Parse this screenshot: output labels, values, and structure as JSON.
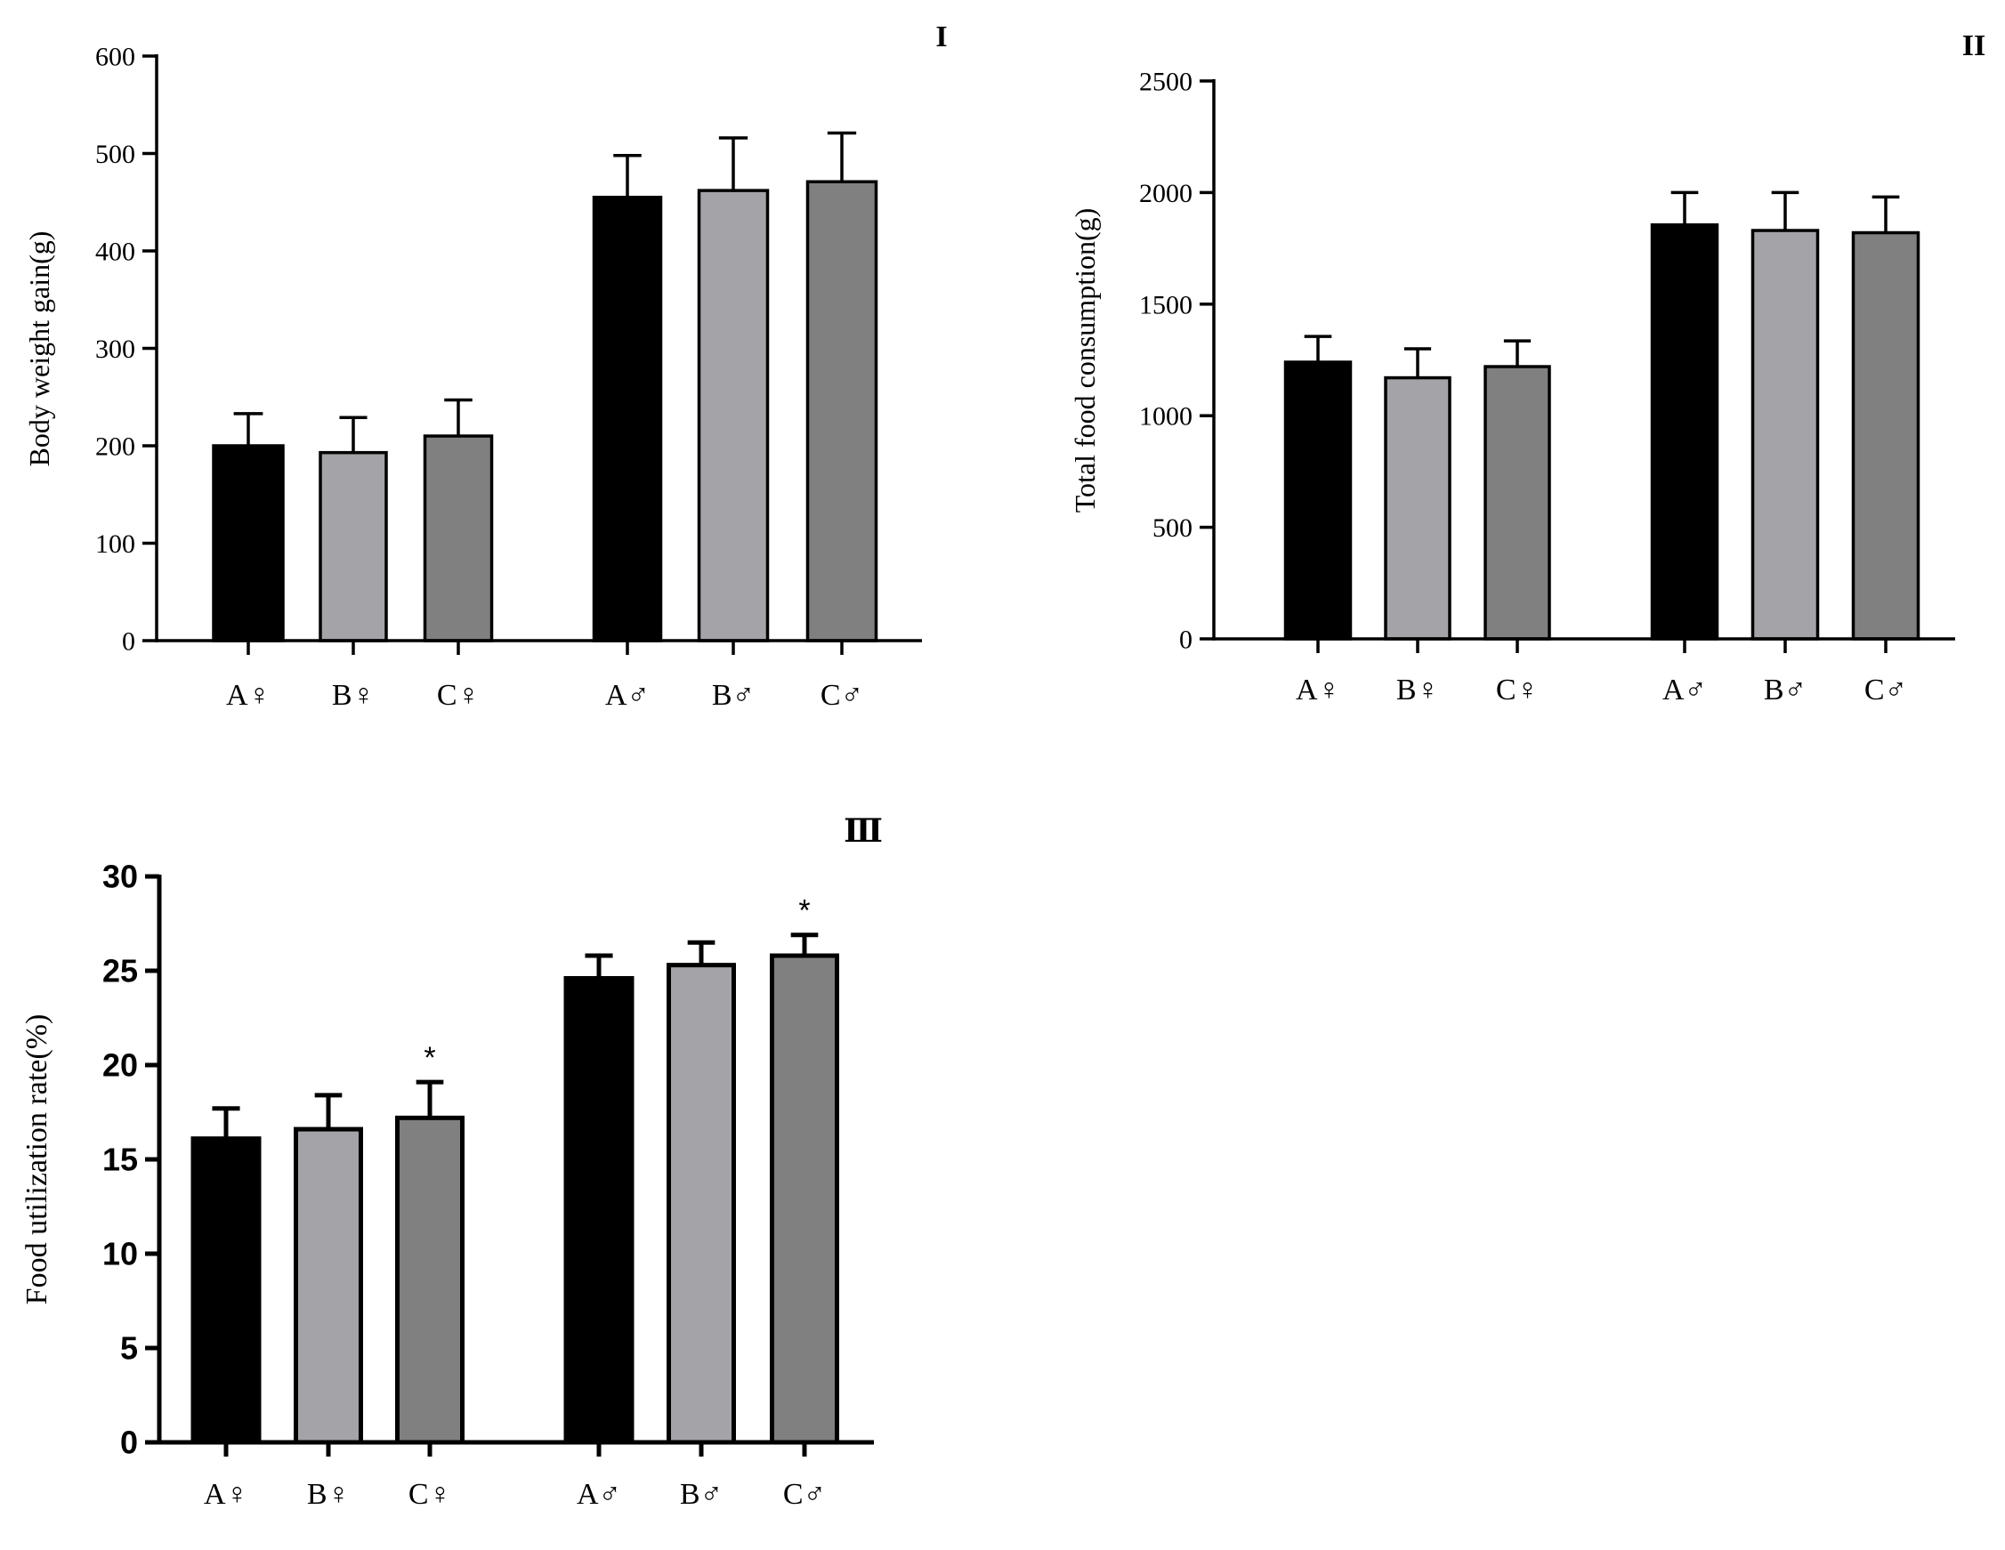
{
  "chart_data": [
    {
      "type": "bar",
      "panel": "I",
      "title": "",
      "xlabel": "",
      "ylabel": "Body weight gain(g)",
      "ylim": [
        0,
        600
      ],
      "yticks": [
        0,
        100,
        200,
        300,
        400,
        500,
        600
      ],
      "categories": [
        "A♀",
        "B♀",
        "C♀",
        "A♂",
        "B♂",
        "C♂"
      ],
      "values": [
        200,
        193,
        210,
        455,
        462,
        471
      ],
      "errors": [
        33,
        36,
        37,
        43,
        54,
        50
      ],
      "significance": [
        "",
        "",
        "",
        "",
        "",
        ""
      ],
      "colors": [
        "#000000",
        "#a3a3a8",
        "#808080",
        "#000000",
        "#a3a3a8",
        "#808080"
      ],
      "grid": false
    },
    {
      "type": "bar",
      "panel": "II",
      "title": "",
      "xlabel": "",
      "ylabel": "Total food consumption(g)",
      "ylim": [
        0,
        2500
      ],
      "yticks": [
        0,
        500,
        1000,
        1500,
        2000,
        2500
      ],
      "categories": [
        "A♀",
        "B♀",
        "C♀",
        "A♂",
        "B♂",
        "C♂"
      ],
      "values": [
        1240,
        1170,
        1220,
        1855,
        1830,
        1820
      ],
      "errors": [
        115,
        130,
        115,
        145,
        170,
        160
      ],
      "significance": [
        "",
        "",
        "",
        "",
        "",
        ""
      ],
      "colors": [
        "#000000",
        "#a3a3a8",
        "#808080",
        "#000000",
        "#a3a3a8",
        "#808080"
      ],
      "grid": false
    },
    {
      "type": "bar",
      "panel": "Ⅲ",
      "title": "",
      "xlabel": "",
      "ylabel": "Food utilization rate(%)",
      "ylim": [
        0,
        30
      ],
      "yticks": [
        0,
        5,
        10,
        15,
        20,
        25,
        30
      ],
      "categories": [
        "A♀",
        "B♀",
        "C♀",
        "A♂",
        "B♂",
        "C♂"
      ],
      "values": [
        16.1,
        16.6,
        17.2,
        24.6,
        25.3,
        25.8
      ],
      "errors": [
        1.6,
        1.8,
        1.9,
        1.2,
        1.2,
        1.1
      ],
      "significance": [
        "",
        "",
        "*",
        "",
        "",
        "*"
      ],
      "colors": [
        "#000000",
        "#a3a3a8",
        "#808080",
        "#000000",
        "#a3a3a8",
        "#808080"
      ],
      "grid": false
    }
  ]
}
